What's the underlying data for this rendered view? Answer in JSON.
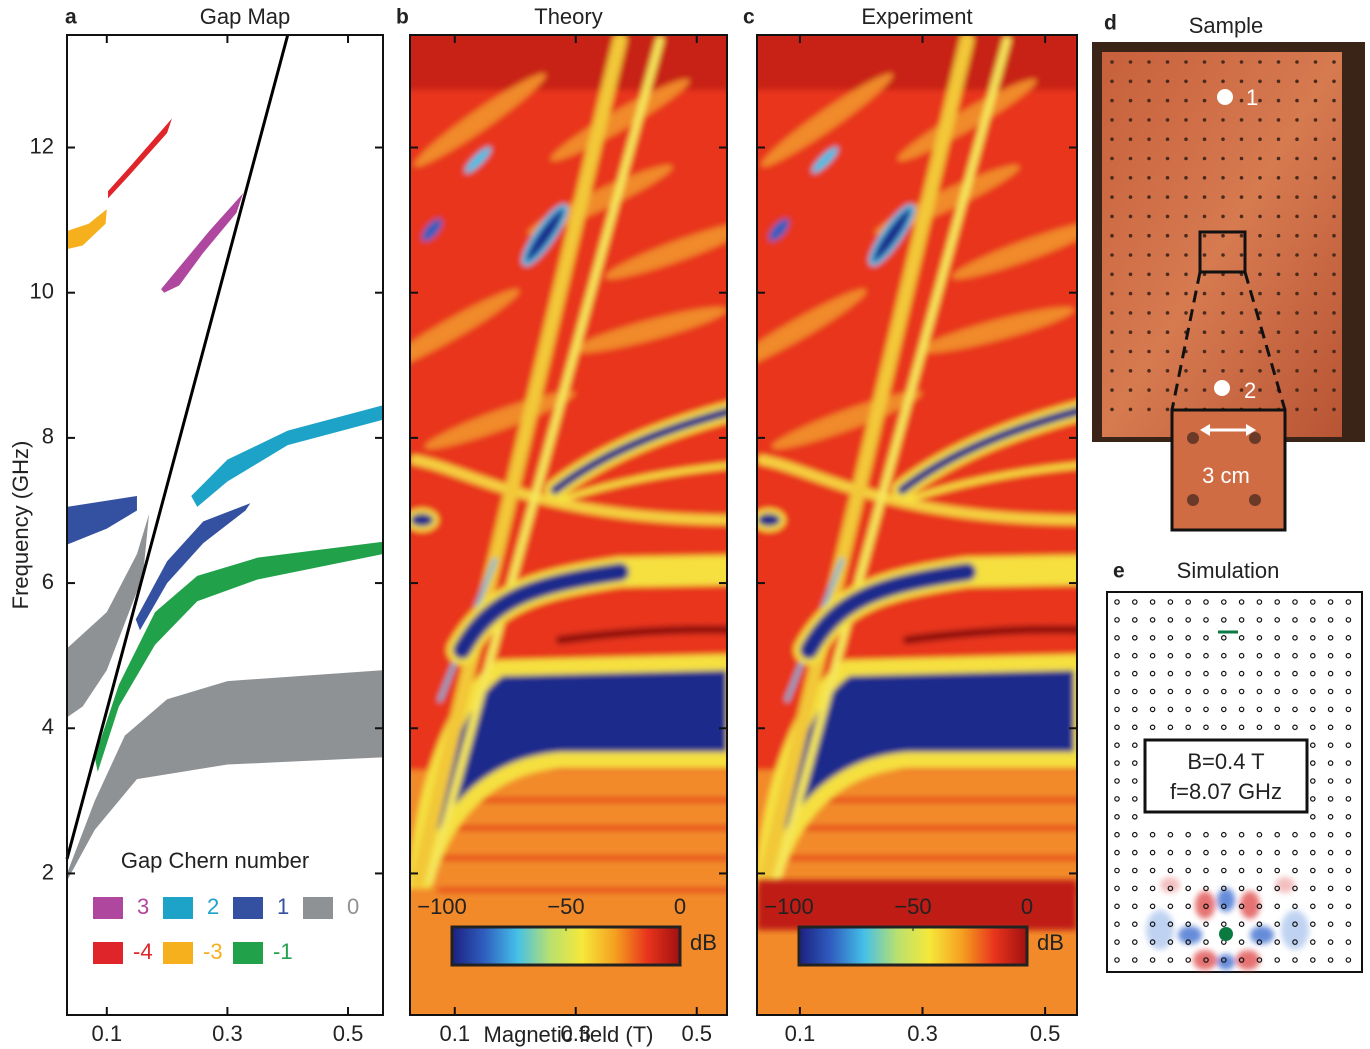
{
  "chart_data": [
    {
      "type": "area",
      "panel": "a",
      "title": "Gap Map",
      "ylabel": "Frequency (GHz)",
      "xlim": [
        0.034,
        0.558
      ],
      "ylim": [
        0.05,
        13.55
      ],
      "xticks": [
        0.1,
        0.3,
        0.5
      ],
      "yticks": [
        2,
        4,
        6,
        8,
        10,
        12
      ],
      "legend_title": "Gap Chern number",
      "series": [
        {
          "name": "3",
          "color": "#b0479e",
          "regions": [
            {
              "x": [
                0.19,
                0.22,
                0.27,
                0.326,
                0.315,
                0.26,
                0.22,
                0.195
              ],
              "y": [
                10.05,
                10.35,
                10.85,
                11.37,
                11.1,
                10.55,
                10.1,
                10.0
              ]
            }
          ]
        },
        {
          "name": "2",
          "color": "#1ea3c8",
          "regions": [
            {
              "x": [
                0.24,
                0.3,
                0.4,
                0.558,
                0.558,
                0.4,
                0.3,
                0.25
              ],
              "y": [
                7.2,
                7.7,
                8.1,
                8.45,
                8.25,
                7.9,
                7.4,
                7.05
              ]
            }
          ]
        },
        {
          "name": "1",
          "color": "#3450a0",
          "regions": [
            {
              "x": [
                0.034,
                0.15,
                0.15,
                0.1,
                0.034
              ],
              "y": [
                7.05,
                7.2,
                7.0,
                6.75,
                6.53
              ]
            },
            {
              "x": [
                0.148,
                0.2,
                0.26,
                0.338,
                0.33,
                0.26,
                0.2,
                0.155
              ],
              "y": [
                5.5,
                6.3,
                6.85,
                7.1,
                7.0,
                6.55,
                6.0,
                5.35
              ]
            }
          ]
        },
        {
          "name": "0",
          "color": "#8f9295",
          "regions": [
            {
              "x": [
                0.034,
                0.1,
                0.15,
                0.17,
                0.16,
                0.1,
                0.06,
                0.034
              ],
              "y": [
                5.1,
                5.6,
                6.4,
                6.95,
                6.1,
                4.8,
                4.3,
                4.15
              ]
            },
            {
              "x": [
                0.034,
                0.08,
                0.13,
                0.2,
                0.3,
                0.558,
                0.558,
                0.3,
                0.15,
                0.08,
                0.034
              ],
              "y": [
                2.0,
                3.0,
                3.9,
                4.4,
                4.65,
                4.8,
                3.6,
                3.5,
                3.3,
                2.6,
                1.9
              ]
            }
          ]
        },
        {
          "name": "-4",
          "color": "#e0252a",
          "regions": [
            {
              "x": [
                0.102,
                0.14,
                0.208,
                0.2,
                0.13,
                0.102
              ],
              "y": [
                11.4,
                11.75,
                12.4,
                12.2,
                11.55,
                11.3
              ]
            }
          ]
        },
        {
          "name": "-3",
          "color": "#f6b01e",
          "regions": [
            {
              "x": [
                0.034,
                0.07,
                0.1,
                0.098,
                0.06,
                0.034
              ],
              "y": [
                10.85,
                10.95,
                11.15,
                10.95,
                10.65,
                10.6
              ]
            }
          ]
        },
        {
          "name": "-1",
          "color": "#21a24a",
          "regions": [
            {
              "x": [
                0.08,
                0.12,
                0.18,
                0.25,
                0.35,
                0.558,
                0.558,
                0.35,
                0.25,
                0.18,
                0.12,
                0.085
              ],
              "y": [
                3.6,
                4.6,
                5.6,
                6.1,
                6.35,
                6.57,
                6.4,
                6.05,
                5.75,
                5.15,
                4.3,
                3.4
              ]
            }
          ]
        }
      ],
      "boundary": {
        "color": "#000000",
        "x": [
          0.034,
          0.4
        ],
        "y": [
          2.2,
          13.55
        ]
      }
    },
    {
      "type": "heatmap",
      "panel": "b",
      "title": "Theory",
      "xlabel": "Magnetic field (T)",
      "xlim": [
        0.026,
        0.55
      ],
      "ylim": [
        0.05,
        13.55
      ],
      "xticks": [
        0.1,
        0.3,
        0.5
      ],
      "yticks": [
        2,
        4,
        6,
        8,
        10,
        12
      ],
      "colorbar": {
        "label": "dB",
        "lim": [
          -100,
          0
        ],
        "ticks": [
          {
            "value": -100,
            "label": "−100"
          },
          {
            "value": -50,
            "label": "−50"
          },
          0
        ],
        "colors": [
          "#1c2080",
          "#2f5fc0",
          "#45c0e8",
          "#b8e070",
          "#f5e83a",
          "#f5a020",
          "#e8341c",
          "#a01010"
        ]
      }
    },
    {
      "type": "heatmap",
      "panel": "c",
      "title": "Experiment",
      "xlim": [
        0.03,
        0.552
      ],
      "ylim": [
        0.05,
        13.55
      ],
      "xticks": [
        0.1,
        0.3,
        0.5
      ],
      "yticks": [
        2,
        4,
        6,
        8,
        10,
        12
      ],
      "colorbar": {
        "label": "dB",
        "lim": [
          -100,
          0
        ],
        "ticks": [
          {
            "value": -100,
            "label": "−100"
          },
          {
            "value": -50,
            "label": "−50"
          },
          0
        ],
        "colors": [
          "#1c2080",
          "#2f5fc0",
          "#45c0e8",
          "#b8e070",
          "#f5e83a",
          "#f5a020",
          "#e8341c",
          "#a01010"
        ]
      }
    }
  ],
  "panels": {
    "d": {
      "panel": "d",
      "title": "Sample",
      "points": [
        "1",
        "2"
      ],
      "scale": "3 cm"
    },
    "e": {
      "panel": "e",
      "title": "Simulation",
      "field": "B=0.4 T",
      "frequency": "f=8.07 GHz"
    }
  }
}
